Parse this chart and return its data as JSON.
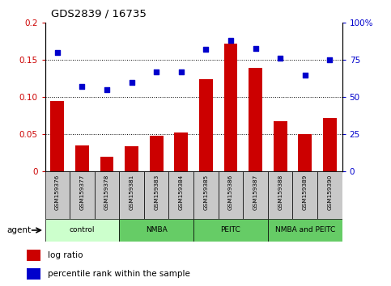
{
  "title": "GDS2839 / 16735",
  "samples": [
    "GSM159376",
    "GSM159377",
    "GSM159378",
    "GSM159381",
    "GSM159383",
    "GSM159384",
    "GSM159385",
    "GSM159386",
    "GSM159387",
    "GSM159388",
    "GSM159389",
    "GSM159390"
  ],
  "log_ratio": [
    0.095,
    0.035,
    0.02,
    0.034,
    0.048,
    0.053,
    0.124,
    0.172,
    0.14,
    0.068,
    0.05,
    0.072
  ],
  "percentile_rank": [
    80,
    57,
    55,
    60,
    67,
    67,
    82,
    88,
    83,
    76,
    65,
    75
  ],
  "bar_color": "#cc0000",
  "dot_color": "#0000cc",
  "ylim_left": [
    0,
    0.2
  ],
  "ylim_right": [
    0,
    100
  ],
  "yticks_left": [
    0,
    0.05,
    0.1,
    0.15,
    0.2
  ],
  "yticks_right": [
    0,
    25,
    50,
    75,
    100
  ],
  "ytick_labels_left": [
    "0",
    "0.05",
    "0.10",
    "0.15",
    "0.2"
  ],
  "ytick_labels_right": [
    "0",
    "25",
    "50",
    "75",
    "100%"
  ],
  "groups": [
    {
      "label": "control",
      "start": 0,
      "end": 3,
      "color": "#ccffcc"
    },
    {
      "label": "NMBA",
      "start": 3,
      "end": 6,
      "color": "#66cc66"
    },
    {
      "label": "PEITC",
      "start": 6,
      "end": 9,
      "color": "#66cc66"
    },
    {
      "label": "NMBA and PEITC",
      "start": 9,
      "end": 12,
      "color": "#66cc66"
    }
  ],
  "agent_label": "agent",
  "legend_log_ratio": "log ratio",
  "legend_percentile": "percentile rank within the sample",
  "dotted_line_color": "black",
  "tick_color_left": "#cc0000",
  "tick_color_right": "#0000cc",
  "background_gray": "#c8c8c8"
}
